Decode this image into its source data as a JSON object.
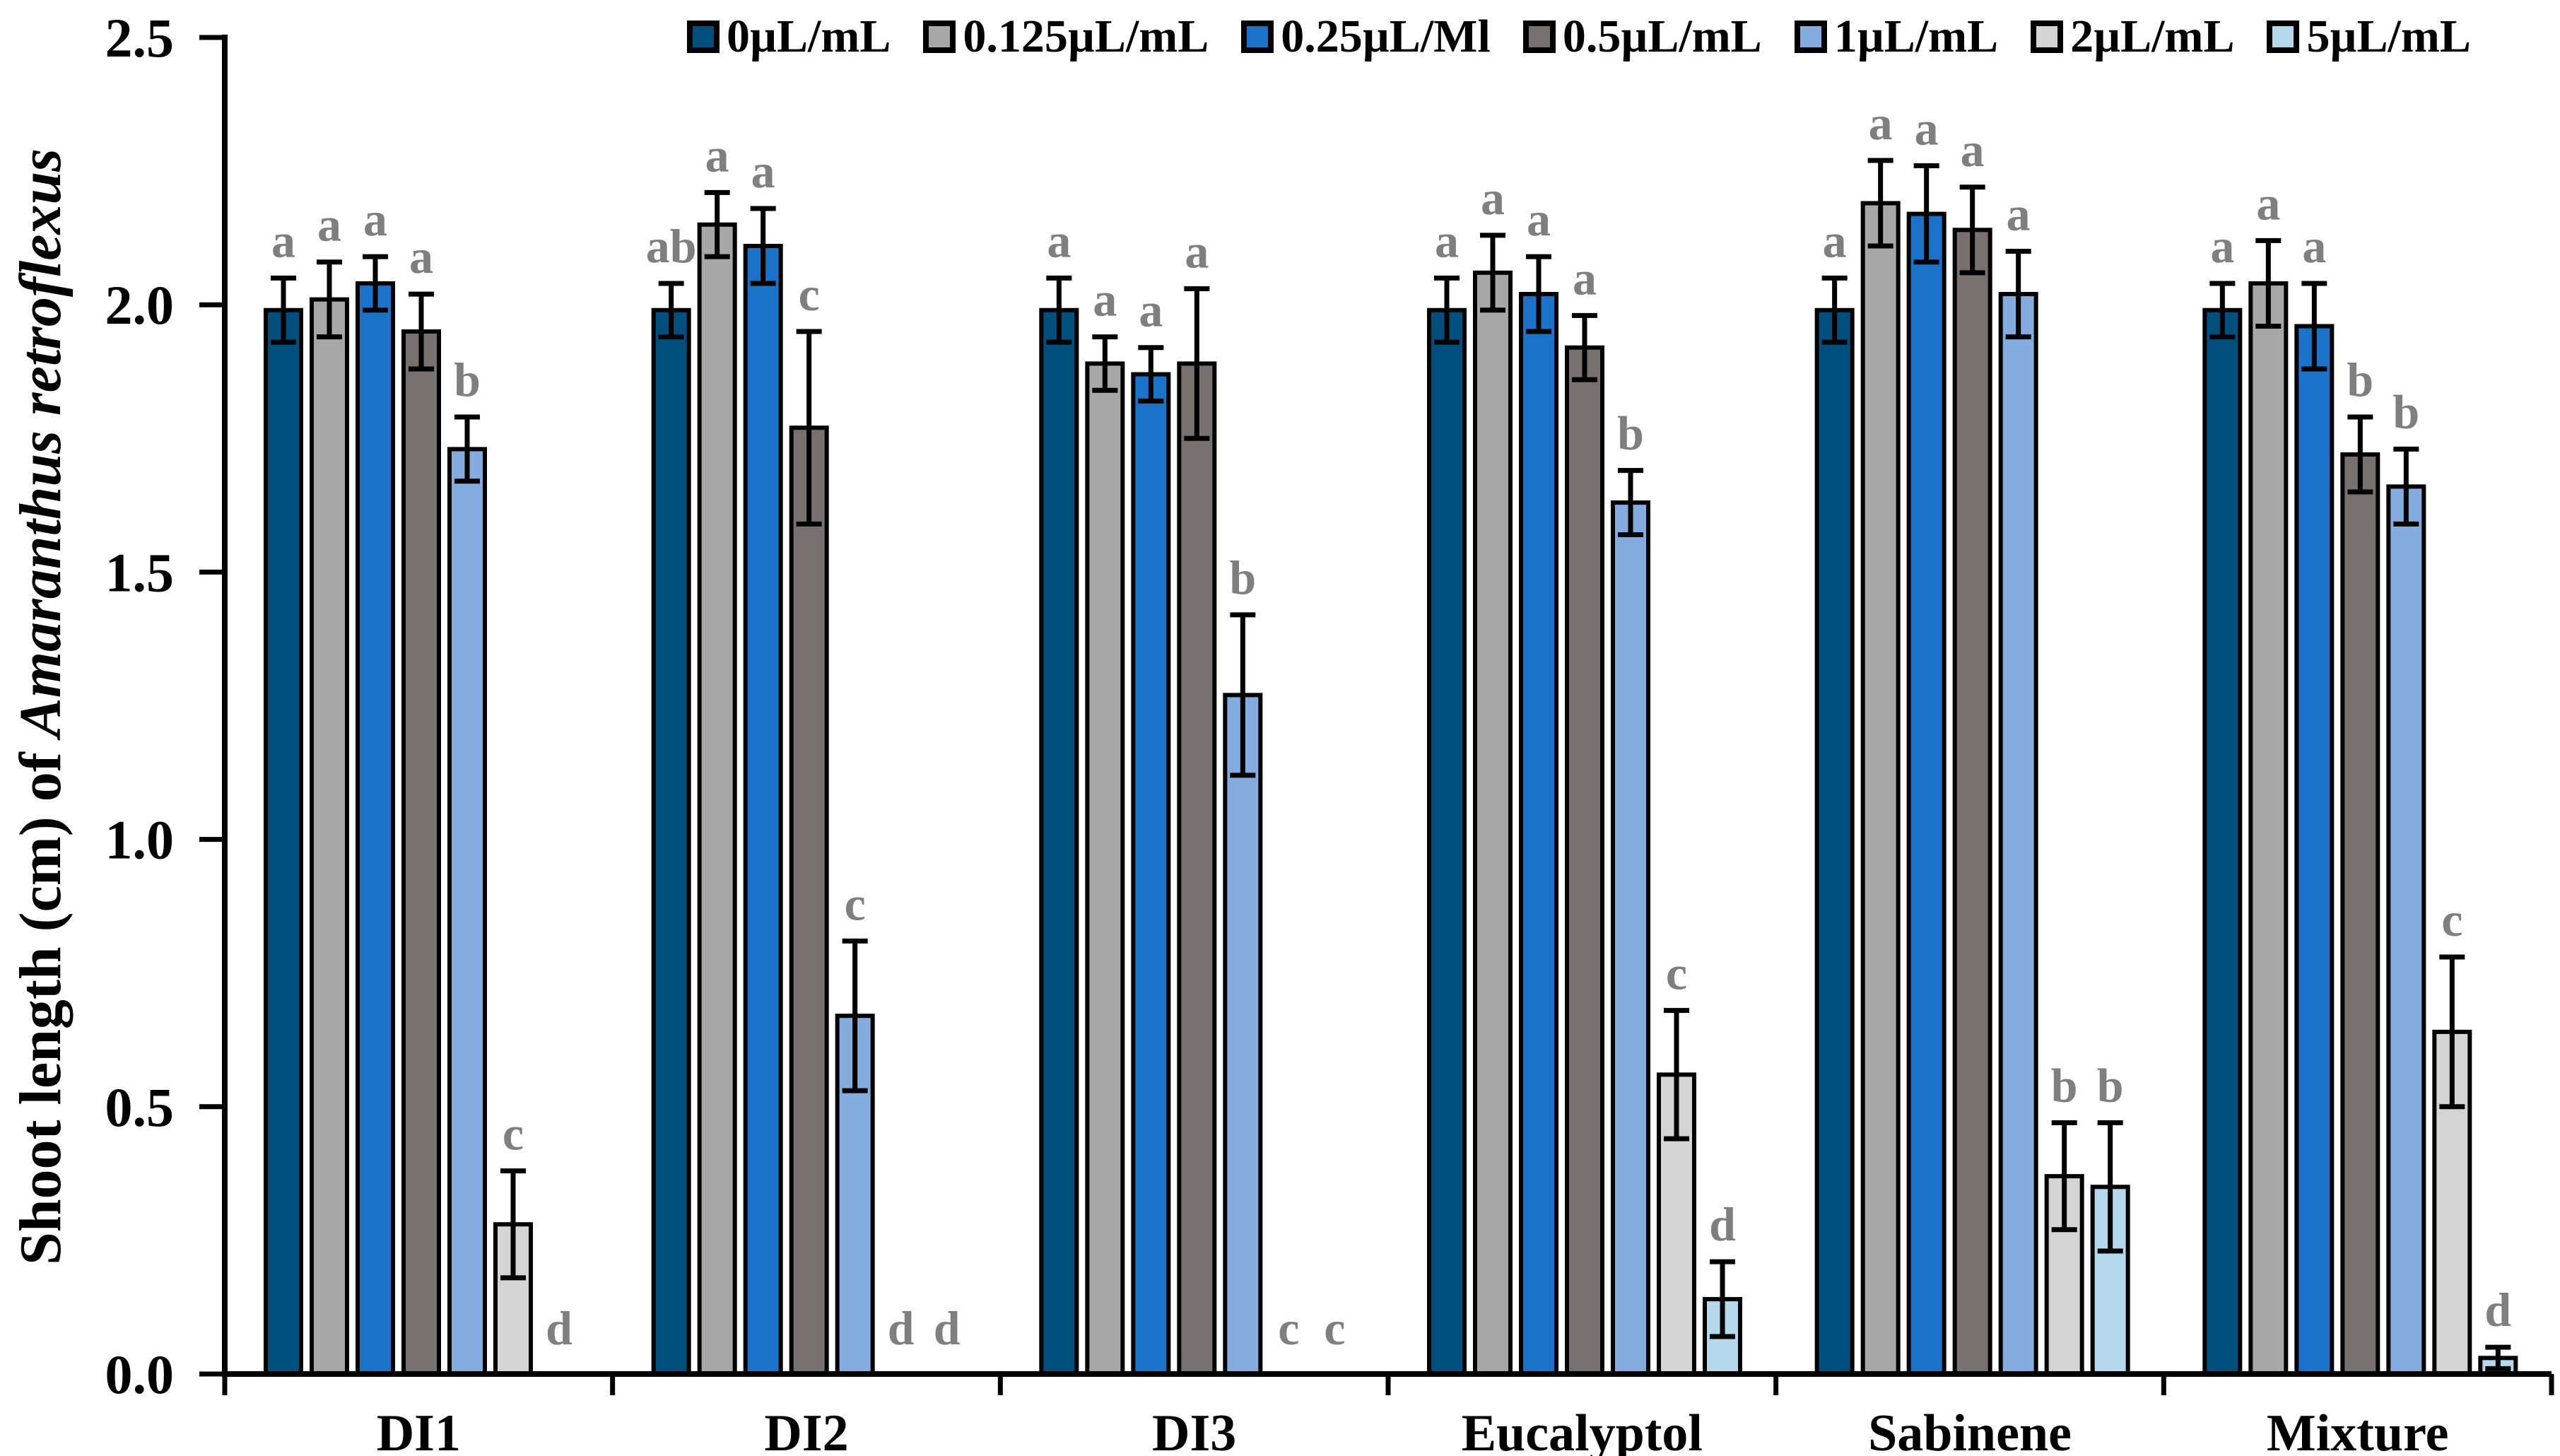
{
  "chart_data": {
    "type": "bar",
    "title": "",
    "ylabel_prefix": "Shoot length (cm) of ",
    "ylabel_italic": "Amaranthus retroflexus",
    "ylabel_full": "Shoot length (cm) of Amaranthus retroflexus",
    "xlabel": "",
    "ylim": [
      0,
      2.5
    ],
    "yticks": [
      0.0,
      0.5,
      1.0,
      1.5,
      2.0,
      2.5
    ],
    "ytick_labels": [
      "0.0",
      "0.5",
      "1.0",
      "1.5",
      "2.0",
      "2.5"
    ],
    "categories": [
      "DI1",
      "DI2",
      "DI3",
      "Eucalyptol",
      "Sabinene",
      "Mixture"
    ],
    "grid": false,
    "legend_position": "top",
    "error_bars": true,
    "significance_letters": true,
    "letter_color": "#7f7f7f",
    "axis_color": "#000000",
    "background_color": "#ffffff",
    "series": [
      {
        "name": "0µL/mL",
        "color": "#004F7C",
        "values": [
          1.99,
          1.99,
          1.99,
          1.99,
          1.99,
          1.99
        ],
        "errors": [
          0.06,
          0.05,
          0.06,
          0.06,
          0.06,
          0.05
        ],
        "letters": [
          "a",
          "ab",
          "a",
          "a",
          "a",
          "a"
        ]
      },
      {
        "name": "0.125µL/mL",
        "color": "#A7A7A7",
        "values": [
          2.01,
          2.15,
          1.89,
          2.06,
          2.19,
          2.04
        ],
        "errors": [
          0.07,
          0.06,
          0.05,
          0.07,
          0.08,
          0.08
        ],
        "letters": [
          "a",
          "a",
          "a",
          "a",
          "a",
          "a"
        ]
      },
      {
        "name": "0.25µL/Ml",
        "color": "#1B73C9",
        "values": [
          2.04,
          2.11,
          1.87,
          2.02,
          2.17,
          1.96
        ],
        "errors": [
          0.05,
          0.07,
          0.05,
          0.07,
          0.09,
          0.08
        ],
        "letters": [
          "a",
          "a",
          "a",
          "a",
          "a",
          "a"
        ]
      },
      {
        "name": "0.5µL/mL",
        "color": "#787170",
        "values": [
          1.95,
          1.77,
          1.89,
          1.92,
          2.14,
          1.72
        ],
        "errors": [
          0.07,
          0.18,
          0.14,
          0.06,
          0.08,
          0.07
        ],
        "letters": [
          "a",
          "c",
          "a",
          "a",
          "a",
          "b"
        ]
      },
      {
        "name": "1µL/mL",
        "color": "#85ACDF",
        "values": [
          1.73,
          0.67,
          1.27,
          1.63,
          2.02,
          1.66
        ],
        "errors": [
          0.06,
          0.14,
          0.15,
          0.06,
          0.08,
          0.07
        ],
        "letters": [
          "b",
          "c",
          "b",
          "b",
          "a",
          "b"
        ]
      },
      {
        "name": "2µL/mL",
        "color": "#D4D4D4",
        "values": [
          0.28,
          0,
          0,
          0.56,
          0.37,
          0.64
        ],
        "errors": [
          0.1,
          0,
          0,
          0.12,
          0.1,
          0.14
        ],
        "letters": [
          "c",
          "d",
          "c",
          "c",
          "b",
          "c"
        ]
      },
      {
        "name": "5µL/mL",
        "color": "#B6D8EC",
        "values": [
          0,
          0,
          0,
          0.14,
          0.35,
          0.03
        ],
        "errors": [
          0,
          0,
          0,
          0.07,
          0.12,
          0.02
        ],
        "letters": [
          "d",
          "d",
          "c",
          "d",
          "b",
          "d"
        ]
      }
    ]
  }
}
